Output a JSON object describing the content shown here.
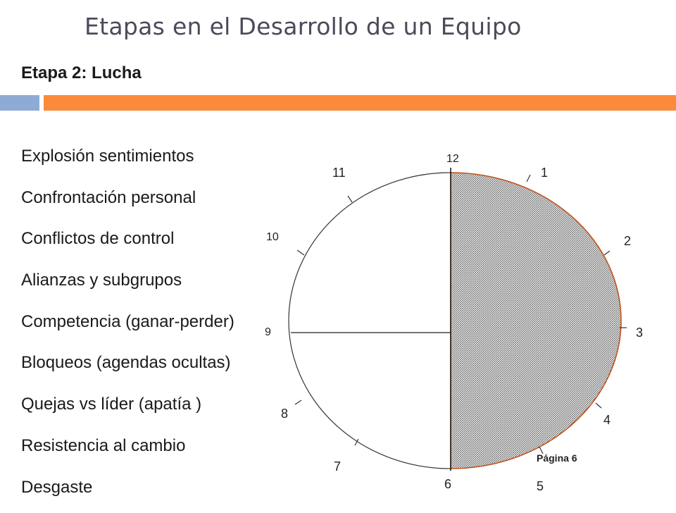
{
  "header": {
    "title": "Etapas en el Desarrollo de un Equipo",
    "subtitle": "Etapa 2: Lucha"
  },
  "stage_items": [
    "Explosión sentimientos",
    "Confrontación personal",
    "Conflictos de control",
    "Alianzas y subgrupos",
    "Competencia (ganar-perder)",
    "Bloqueos (agendas ocultas)",
    "Quejas vs líder (apatía )",
    "Resistencia al cambio",
    "Desgaste"
  ],
  "clock": {
    "hour_labels": [
      "12",
      "1",
      "2",
      "3",
      "4",
      "5",
      "6",
      "7",
      "8",
      "9",
      "10",
      "11"
    ],
    "shaded_half": "right",
    "page_label": "Página 6"
  },
  "colors": {
    "title": "#4a4a5a",
    "accent_blue": "#8eabd6",
    "accent_orange": "#fb8a3a",
    "shaded_edge": "#c0531c"
  }
}
